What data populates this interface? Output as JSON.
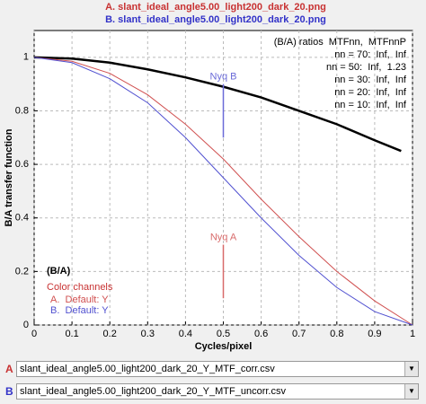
{
  "chart_data": {
    "type": "line",
    "title_lines": [
      {
        "text": "A. slant_ideal_angle5.00_light200_dark_20.png",
        "color": "#c83232"
      },
      {
        "text": "B. slant_ideal_angle5.00_light200_dark_20.png",
        "color": "#3232c8"
      }
    ],
    "xlabel": "Cycles/pixel",
    "ylabel": "B/A transfer function",
    "x": [
      0,
      0.1,
      0.2,
      0.3,
      0.4,
      0.5,
      0.6,
      0.7,
      0.8,
      0.9,
      1.0
    ],
    "series": [
      {
        "name": "(B/A)",
        "color": "#000000",
        "x": [
          0,
          0.1,
          0.2,
          0.3,
          0.4,
          0.5,
          0.6,
          0.7,
          0.8,
          0.9,
          0.97
        ],
        "values": [
          1.0,
          0.995,
          0.98,
          0.955,
          0.925,
          0.89,
          0.85,
          0.8,
          0.75,
          0.69,
          0.65
        ]
      },
      {
        "name": "A.  Default: Y",
        "color": "#d05050",
        "values": [
          1.0,
          0.985,
          0.94,
          0.86,
          0.75,
          0.62,
          0.47,
          0.33,
          0.2,
          0.09,
          0.0
        ]
      },
      {
        "name": "B.  Default: Y",
        "color": "#5050d0",
        "values": [
          1.0,
          0.98,
          0.92,
          0.83,
          0.7,
          0.55,
          0.4,
          0.26,
          0.14,
          0.05,
          0.0
        ]
      }
    ],
    "legend_title": "Color channels",
    "markers": [
      {
        "label": "Nyq B",
        "x": 0.5,
        "y": [
          0.7,
          0.9
        ],
        "color": "#6b6bd8"
      },
      {
        "label": "Nyq A",
        "x": 0.5,
        "y": [
          0.1,
          0.3
        ],
        "color": "#d86b6b"
      }
    ],
    "ratio_table": {
      "header": "(B/A) ratios  MTFnn,  MTFnnP",
      "rows": [
        "nn = 70:  Inf,  Inf",
        "nn = 50:  Inf,  1.23",
        "nn = 30:  Inf,  Inf",
        "nn = 20:  Inf,  Inf",
        "nn = 10:  Inf,  Inf"
      ]
    },
    "xlim": [
      0,
      1
    ],
    "ylim": [
      0,
      1.1
    ],
    "xticks": [
      0,
      0.1,
      0.2,
      0.3,
      0.4,
      0.5,
      0.6,
      0.7,
      0.8,
      0.9,
      1
    ],
    "yticks": [
      0,
      0.2,
      0.4,
      0.6,
      0.8,
      1
    ],
    "grid": true
  },
  "files": [
    {
      "label": "A",
      "text": "slant_ideal_angle5.00_light200_dark_20_Y_MTF_corr.csv",
      "color": "#c83232"
    },
    {
      "label": "B",
      "text": "slant_ideal_angle5.00_light200_dark_20_Y_MTF_uncorr.csv",
      "color": "#3232c8"
    }
  ]
}
